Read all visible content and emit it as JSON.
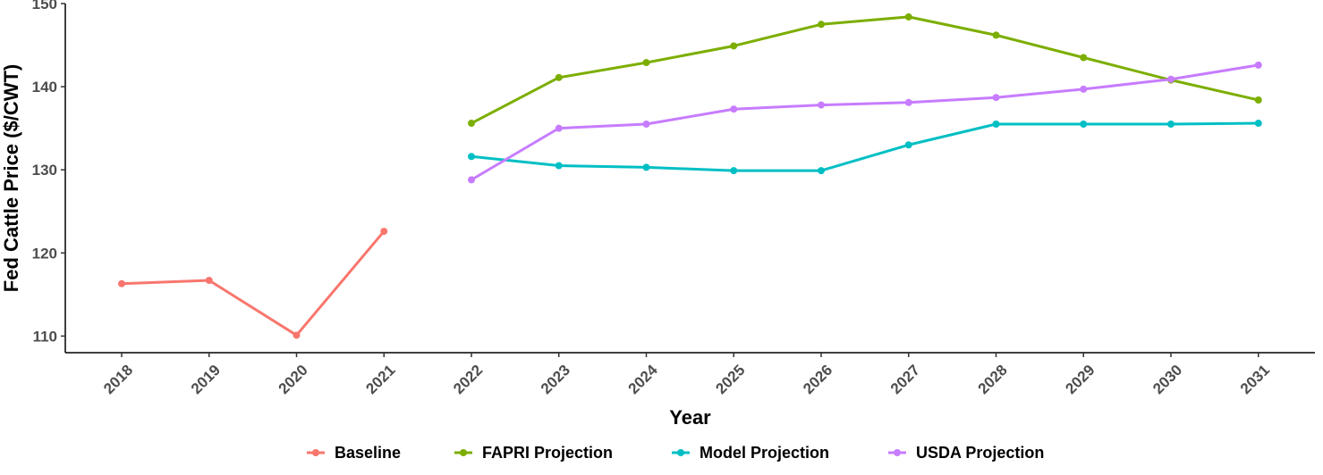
{
  "chart_data": {
    "type": "line",
    "title": "",
    "xlabel": "Year",
    "ylabel": "Fed Cattle Price ($/CWT)",
    "categories": [
      "2018",
      "2019",
      "2020",
      "2021",
      "2022",
      "2023",
      "2024",
      "2025",
      "2026",
      "2027",
      "2028",
      "2029",
      "2030",
      "2031"
    ],
    "ylim": [
      108,
      150
    ],
    "yticks": [
      110,
      120,
      130,
      140,
      150
    ],
    "grid": false,
    "legend_position": "bottom",
    "series": [
      {
        "name": "Baseline",
        "color": "#F8766D",
        "x": [
          "2018",
          "2019",
          "2020",
          "2021"
        ],
        "values": [
          116.3,
          116.7,
          110.1,
          122.6
        ]
      },
      {
        "name": "FAPRI Projection",
        "color": "#7CAE00",
        "x": [
          "2022",
          "2023",
          "2024",
          "2025",
          "2026",
          "2027",
          "2028",
          "2029",
          "2030",
          "2031"
        ],
        "values": [
          135.6,
          141.1,
          142.9,
          144.9,
          147.5,
          148.4,
          146.2,
          143.5,
          140.8,
          138.4
        ]
      },
      {
        "name": "Model Projection",
        "color": "#00BFC4",
        "x": [
          "2022",
          "2023",
          "2024",
          "2025",
          "2026",
          "2027",
          "2028",
          "2029",
          "2030",
          "2031"
        ],
        "values": [
          131.6,
          130.5,
          130.3,
          129.9,
          129.9,
          133.0,
          135.5,
          135.5,
          135.5,
          135.6
        ]
      },
      {
        "name": "USDA Projection",
        "color": "#C77CFF",
        "x": [
          "2022",
          "2023",
          "2024",
          "2025",
          "2026",
          "2027",
          "2028",
          "2029",
          "2030",
          "2031"
        ],
        "values": [
          128.8,
          135.0,
          135.5,
          137.3,
          137.8,
          138.1,
          138.7,
          139.7,
          140.9,
          142.6
        ]
      }
    ]
  }
}
